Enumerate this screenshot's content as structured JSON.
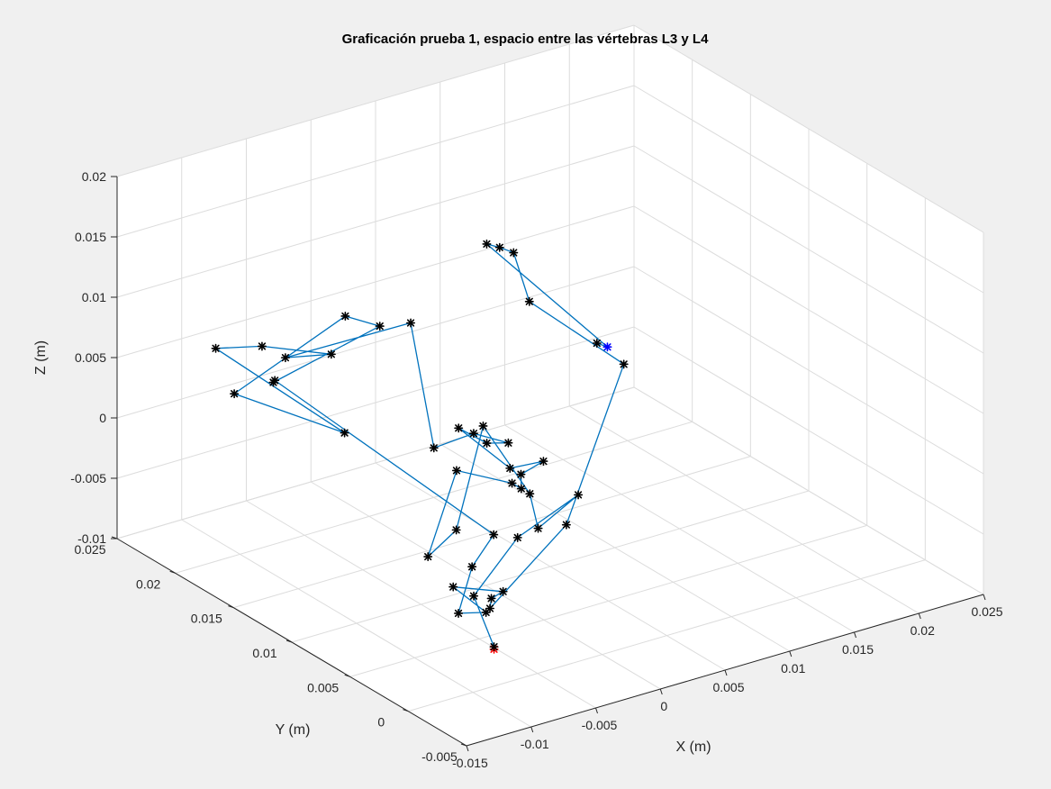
{
  "chart_data": {
    "type": "line3d",
    "title": "Graficación prueba 1, espacio entre las vértebras L3 y L4",
    "xlabel": "X (m)",
    "ylabel": "Y (m)",
    "zlabel": "Z (m)",
    "xlim": [
      -0.015,
      0.025
    ],
    "ylim": [
      -0.005,
      0.025
    ],
    "zlim": [
      -0.01,
      0.02
    ],
    "xticks": [
      "-0.015",
      "-0.01",
      "-0.005",
      "0",
      "0.005",
      "0.01",
      "0.015",
      "0.02",
      "0.025"
    ],
    "yticks": [
      "-0.005",
      "0",
      "0.005",
      "0.01",
      "0.015",
      "0.02",
      "0.025"
    ],
    "zticks": [
      "-0.01",
      "-0.005",
      "0",
      "0.005",
      "0.01",
      "0.015",
      "0.02"
    ],
    "grid": true,
    "colors": {
      "line": "#0072bd",
      "marker": "#000000",
      "start_marker": "#ff0000",
      "end_marker": "#0000ff",
      "grid": "#dcdcdc",
      "background": "#ffffff",
      "figure": "#f0f0f0"
    },
    "marker": "asterisk",
    "start_index": 0,
    "end_index": 46,
    "points": [
      [
        -0.0044,
        0.0044,
        -0.0107
      ],
      [
        -0.0044,
        0.0044,
        -0.0105
      ],
      [
        -0.0066,
        0.0037,
        -0.0052
      ],
      [
        0.0013,
        0.0087,
        -0.0057
      ],
      [
        0.0105,
        0.0137,
        -0.0079
      ],
      [
        0.0037,
        0.0096,
        -0.0062
      ],
      [
        0.0045,
        0.0112,
        -0.0045
      ],
      [
        0.0099,
        0.0212,
        -0.0063
      ],
      [
        -0.0011,
        0.0113,
        -0.0058
      ],
      [
        -0.0087,
        0.0053,
        -0.0022
      ],
      [
        -0.0018,
        0.0105,
        -0.0002
      ],
      [
        0.0006,
        0.0084,
        -0.0008
      ],
      [
        -0.0013,
        0.0055,
        0.001
      ],
      [
        0.0012,
        0.0083,
        -0.0002
      ],
      [
        0.0033,
        0.0087,
        0.0
      ],
      [
        -0.0001,
        0.0078,
        0.001
      ],
      [
        -0.0002,
        0.0121,
        0.0019
      ],
      [
        -0.0009,
        0.0089,
        0.0027
      ],
      [
        -0.0005,
        0.0075,
        0.0034
      ],
      [
        -0.0021,
        0.0087,
        0.004
      ],
      [
        -0.0068,
        0.0069,
        0.0053
      ],
      [
        0.0006,
        0.0171,
        0.0075
      ],
      [
        -0.02,
        0.005,
        0.018
      ],
      [
        -0.0169,
        0.0045,
        0.0176
      ],
      [
        -0.0219,
        0.0049,
        0.0196
      ],
      [
        -0.0171,
        0.0142,
        0.0126
      ],
      [
        -0.0138,
        0.0068,
        0.0088
      ],
      [
        -0.0181,
        0.0115,
        0.0107
      ],
      [
        -0.0023,
        0.0195,
        0.0076
      ],
      [
        -0.0017,
        0.0172,
        0.0079
      ],
      [
        -0.0231,
        0.0026,
        0.0183
      ],
      [
        -0.0219,
        0.0038,
        0.0174
      ],
      [
        -0.0001,
        0.0092,
        -0.0053
      ],
      [
        0.0003,
        0.0115,
        -0.0094
      ],
      [
        -0.0049,
        0.0069,
        -0.009
      ],
      [
        0.0003,
        0.0103,
        -0.0125
      ],
      [
        -0.0017,
        0.0109,
        -0.0101
      ],
      [
        0.0009,
        0.0095,
        -0.0105
      ],
      [
        -0.0001,
        0.0094,
        -0.0107
      ],
      [
        -0.0021,
        0.0073,
        -0.0097
      ],
      [
        0.0021,
        0.0054,
        -0.003
      ],
      [
        0.017,
        0.017,
        -0.001
      ],
      [
        0.016,
        0.024,
        0.0005
      ],
      [
        0.0146,
        0.0238,
        0.0051
      ],
      [
        0.0137,
        0.024,
        0.0057
      ],
      [
        0.0127,
        0.024,
        0.0063
      ],
      [
        0.0224,
        0.0244,
        -0.0055
      ],
      [
        0.0224,
        0.0253,
        -0.0057
      ]
    ]
  }
}
